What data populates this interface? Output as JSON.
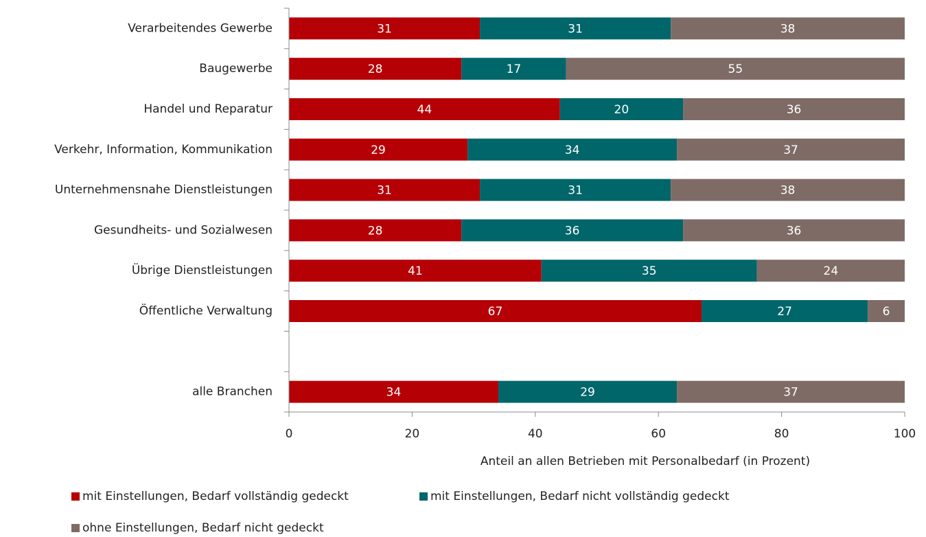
{
  "chart_data": {
    "type": "stacked_barh",
    "categories": [
      "Verarbeitendes Gewerbe",
      "Baugewerbe",
      "Handel und Reparatur",
      "Verkehr, Information, Kommunikation",
      "Unternehmensnahe Dienstleistungen",
      "Gesundheits- und Sozialwesen",
      "Übrige Dienstleistungen",
      "Öffentliche Verwaltung",
      null,
      "alle Branchen"
    ],
    "series": [
      {
        "name": "mit Einstellungen, Bedarf vollständig gedeckt",
        "color": "#b50006",
        "values": [
          31,
          28,
          44,
          29,
          31,
          28,
          41,
          67,
          null,
          34
        ]
      },
      {
        "name": "mit Einstellungen, Bedarf nicht vollständig gedeckt",
        "color": "#00666a",
        "values": [
          31,
          17,
          20,
          34,
          31,
          36,
          35,
          27,
          null,
          29
        ]
      },
      {
        "name": "ohne Einstellungen, Bedarf nicht gedeckt",
        "color": "#7f6b66",
        "values": [
          38,
          55,
          36,
          37,
          38,
          36,
          24,
          6,
          null,
          37
        ]
      }
    ],
    "xlabel": "Anteil an allen Betrieben mit Personalbedarf (in Prozent)",
    "xlim": [
      0,
      100
    ],
    "xticks": [
      0,
      20,
      40,
      60,
      80,
      100
    ]
  }
}
